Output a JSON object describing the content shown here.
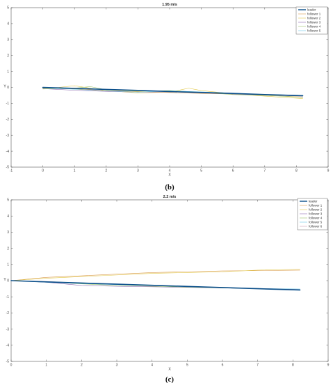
{
  "chart_data": [
    {
      "type": "line",
      "title": "1.95 m/s",
      "xlabel": "X",
      "ylabel": "Y",
      "xlim": [
        -1,
        9
      ],
      "ylim": [
        -5,
        5
      ],
      "xticks": [
        "-1",
        "0",
        "1",
        "2",
        "3",
        "4",
        "5",
        "6",
        "7",
        "8",
        "9"
      ],
      "yticks": [
        "-5",
        "-4",
        "-3",
        "-2",
        "-1",
        "0",
        "1",
        "2",
        "3",
        "4",
        "5"
      ],
      "legend_position": "top-right",
      "caption": "(b)",
      "series": [
        {
          "name": "leader",
          "color": "#0b4f8a",
          "width": 1.6,
          "x": [
            0,
            1,
            2,
            3,
            4,
            5,
            6,
            7,
            8.2
          ],
          "y": [
            0.0,
            -0.06,
            -0.13,
            -0.19,
            -0.26,
            -0.32,
            -0.38,
            -0.45,
            -0.52
          ]
        },
        {
          "name": "follower 1",
          "color": "#d99a4a",
          "width": 0.6,
          "x": [
            0,
            1,
            2,
            3,
            4,
            5,
            6,
            7,
            8.2
          ],
          "y": [
            -0.05,
            -0.1,
            -0.2,
            -0.28,
            -0.32,
            -0.38,
            -0.42,
            -0.5,
            -0.6
          ]
        },
        {
          "name": "follower 2",
          "color": "#e2c84a",
          "width": 0.6,
          "x": [
            0,
            0.5,
            1,
            2,
            3,
            4,
            4.6,
            5,
            6,
            7,
            8.2
          ],
          "y": [
            -0.05,
            0.0,
            0.1,
            -0.2,
            -0.35,
            -0.3,
            -0.05,
            -0.2,
            -0.4,
            -0.55,
            -0.7
          ]
        },
        {
          "name": "follower 3",
          "color": "#8e6bb0",
          "width": 0.6,
          "x": [
            0,
            1,
            2,
            3,
            4,
            5,
            6,
            7,
            8.2
          ],
          "y": [
            -0.08,
            -0.18,
            -0.25,
            -0.3,
            -0.28,
            -0.35,
            -0.42,
            -0.48,
            -0.55
          ]
        },
        {
          "name": "follower 4",
          "color": "#9bc26a",
          "width": 0.6,
          "x": [
            0,
            1,
            1.5,
            2,
            3,
            4,
            5,
            6,
            7,
            8.2
          ],
          "y": [
            -0.1,
            -0.05,
            0.05,
            -0.15,
            -0.25,
            -0.2,
            -0.3,
            -0.45,
            -0.5,
            -0.62
          ]
        },
        {
          "name": "follower 5",
          "color": "#6ac6e8",
          "width": 0.6,
          "x": [
            0,
            1,
            2,
            3,
            4,
            5,
            6,
            7,
            8.2
          ],
          "y": [
            -0.03,
            -0.12,
            -0.22,
            -0.3,
            -0.22,
            -0.28,
            -0.36,
            -0.44,
            -0.5
          ]
        }
      ]
    },
    {
      "type": "line",
      "title": "2.2 m/s",
      "xlabel": "X",
      "ylabel": "Y",
      "xlim": [
        0,
        9
      ],
      "ylim": [
        -5,
        5
      ],
      "xticks": [
        "0",
        "1",
        "2",
        "3",
        "4",
        "5",
        "6",
        "7",
        "8",
        "9"
      ],
      "yticks": [
        "-5",
        "-4",
        "-3",
        "-2",
        "-1",
        "0",
        "1",
        "2",
        "3",
        "4",
        "5"
      ],
      "legend_position": "top-right",
      "caption": "(c)",
      "series": [
        {
          "name": "leader",
          "color": "#0b4f8a",
          "width": 1.6,
          "x": [
            0,
            1,
            2,
            3,
            4,
            5,
            6,
            7,
            8.2
          ],
          "y": [
            0.0,
            -0.08,
            -0.15,
            -0.22,
            -0.29,
            -0.36,
            -0.43,
            -0.5,
            -0.58
          ]
        },
        {
          "name": "follower 1",
          "color": "#d99a4a",
          "width": 0.6,
          "x": [
            0,
            1,
            2,
            3,
            4,
            5,
            6,
            7,
            8.2
          ],
          "y": [
            0.0,
            0.2,
            0.3,
            0.4,
            0.5,
            0.55,
            0.6,
            0.62,
            0.65
          ]
        },
        {
          "name": "follower 2",
          "color": "#e2c84a",
          "width": 0.6,
          "x": [
            0,
            1,
            2,
            3,
            4,
            5,
            6,
            7,
            8.2
          ],
          "y": [
            0.0,
            0.15,
            0.25,
            0.35,
            0.45,
            0.5,
            0.55,
            0.65,
            0.7
          ]
        },
        {
          "name": "follower 3",
          "color": "#8e6bb0",
          "width": 0.6,
          "x": [
            0,
            1,
            2,
            3,
            4,
            5,
            6,
            7,
            8.2
          ],
          "y": [
            0.0,
            -0.1,
            -0.3,
            -0.35,
            -0.38,
            -0.42,
            -0.45,
            -0.5,
            -0.55
          ]
        },
        {
          "name": "follower 4",
          "color": "#9bc26a",
          "width": 0.6,
          "x": [
            0,
            1,
            2,
            3,
            4,
            5,
            6,
            7,
            8.2
          ],
          "y": [
            0.0,
            -0.08,
            -0.2,
            -0.3,
            -0.35,
            -0.4,
            -0.45,
            -0.5,
            -0.58
          ]
        },
        {
          "name": "follower 5",
          "color": "#6ac6e8",
          "width": 0.6,
          "x": [
            0,
            1,
            2,
            3,
            4,
            5,
            6,
            7,
            8.2
          ],
          "y": [
            0.0,
            -0.1,
            -0.18,
            -0.25,
            -0.3,
            -0.38,
            -0.42,
            -0.48,
            -0.52
          ]
        },
        {
          "name": "follower 6",
          "color": "#c9a0b5",
          "width": 0.6,
          "x": [
            0,
            1,
            2,
            3,
            4,
            5,
            6,
            7,
            8.2
          ],
          "y": [
            0.0,
            -0.05,
            -0.15,
            -0.22,
            -0.3,
            -0.35,
            -0.42,
            -0.48,
            -0.55
          ]
        }
      ]
    }
  ]
}
